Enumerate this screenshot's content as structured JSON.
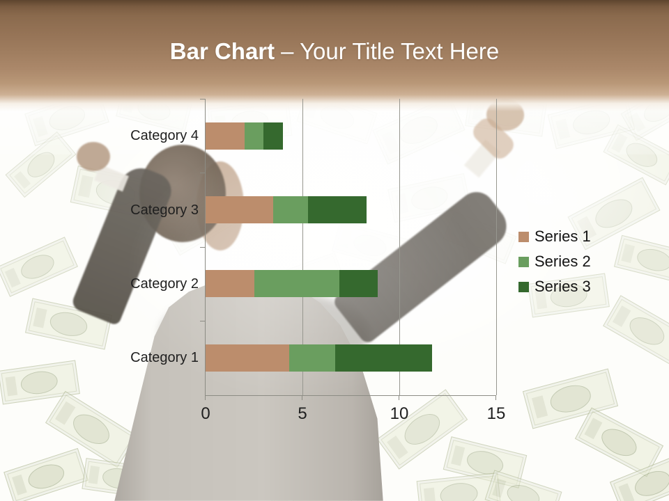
{
  "title": {
    "bold": "Bar Chart",
    "rest": "– Your Title Text Here",
    "full": "Bar Chart – Your Title Text Here"
  },
  "chart_data": {
    "type": "bar",
    "orientation": "horizontal",
    "stacked": true,
    "title": "Bar Chart – Your Title Text Here",
    "categories": [
      "Category 1",
      "Category 2",
      "Category 3",
      "Category 4"
    ],
    "category_display_order_top_to_bottom": [
      "Category 4",
      "Category 3",
      "Category 2",
      "Category 1"
    ],
    "series": [
      {
        "name": "Series 1",
        "color": "#bc8d6c",
        "values": [
          4.3,
          2.5,
          3.5,
          2
        ]
      },
      {
        "name": "Series 2",
        "color": "#6a9e5f",
        "values": [
          2.4,
          4.4,
          1.8,
          1
        ]
      },
      {
        "name": "Series 3",
        "color": "#35692e",
        "values": [
          5,
          2,
          3,
          1
        ]
      }
    ],
    "x_axis": {
      "min": 0,
      "max": 15,
      "ticks": [
        0,
        5,
        10,
        15
      ]
    },
    "y_axis_label": "",
    "x_axis_label": "",
    "legend": {
      "position": "right",
      "entries": [
        "Series 1",
        "Series 2",
        "Series 3"
      ]
    },
    "gridlines": "vertical"
  }
}
